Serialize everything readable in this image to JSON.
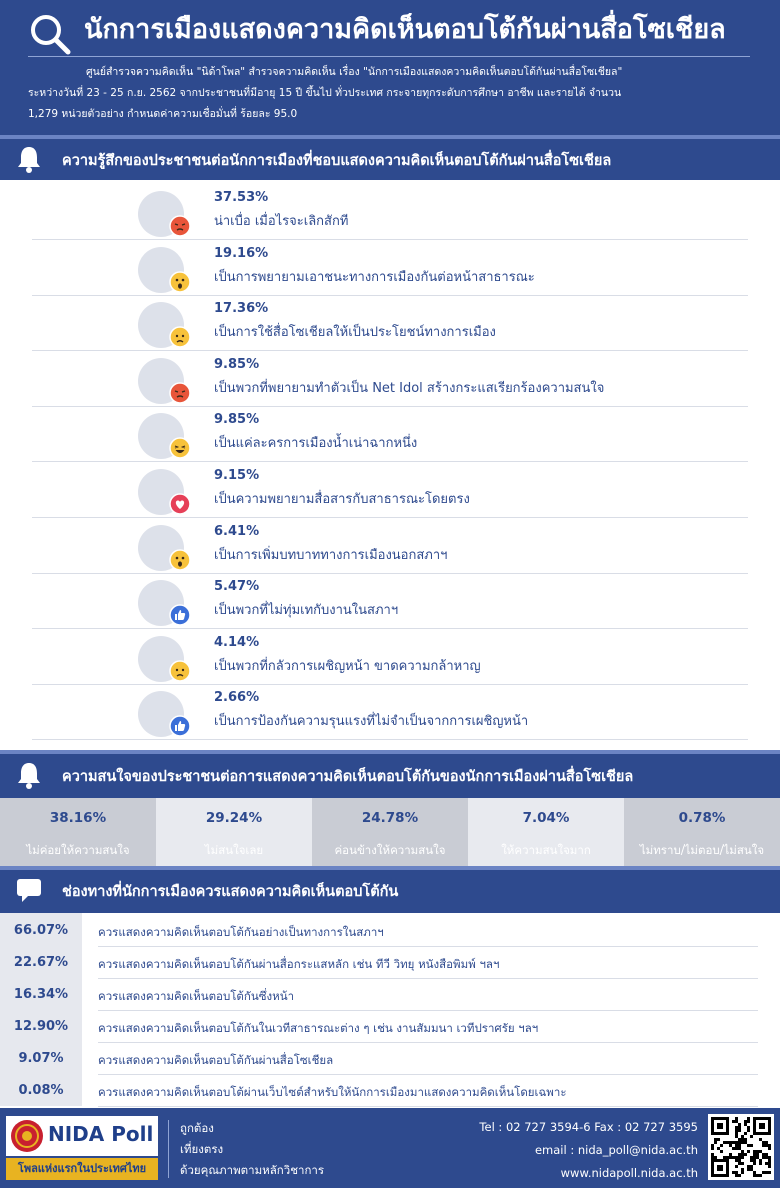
{
  "header": {
    "title": "นักการเมืองแสดงความคิดเห็นตอบโต้กันผ่านสื่อโซเชียล",
    "desc_line1": "ศูนย์สำรวจความคิดเห็น \"นิด้าโพล\" สำรวจความคิดเห็น เรื่อง \"นักการเมืองแสดงความคิดเห็นตอบโต้กันผ่านสื่อโซเชียล\"",
    "desc_line2": "ระหว่างวันที่ 23 - 25 ก.ย. 2562 จากประชาชนที่มีอายุ 15 ปี ขึ้นไป ทั่วประเทศ กระจายทุกระดับการศึกษา อาชีพ และรายได้ จำนวน",
    "desc_line3": "1,279 หน่วยตัวอย่าง กำหนดค่าความเชื่อมั่นที่ ร้อยละ 95.0"
  },
  "colors": {
    "brand": "#2e4a8e",
    "angry": "#e8553a",
    "yellow": "#f7c23b",
    "love": "#e64058",
    "like": "#3b6fd8",
    "s2_dark": "#c9ccd4",
    "s2_light": "#e8eaef"
  },
  "chart_data": [
    {
      "type": "bar",
      "title": "ความรู้สึกของประชาชนต่อนักการเมืองที่ชอบแสดงความคิดเห็นตอบโต้กันผ่านสื่อโซเชียล",
      "items": [
        {
          "pct": "37.53%",
          "label": "น่าเบื่อ เมื่อไรจะเลิกสักที",
          "icon": "angry-emoji-icon"
        },
        {
          "pct": "19.16%",
          "label": "เป็นการพยายามเอาชนะทางการเมืองกันต่อหน้าสาธารณะ",
          "icon": "wow-emoji-icon"
        },
        {
          "pct": "17.36%",
          "label": "เป็นการใช้สื่อโซเชียลให้เป็นประโยชน์ทางการเมือง",
          "icon": "sad-emoji-icon"
        },
        {
          "pct": "9.85%",
          "label": "เป็นพวกที่พยายามทำตัวเป็น Net Idol สร้างกระแสเรียกร้องความสนใจ",
          "icon": "angry-emoji-icon"
        },
        {
          "pct": "9.85%",
          "label": "เป็นแค่ละครการเมืองน้ำเน่าฉากหนึ่ง",
          "icon": "haha-emoji-icon"
        },
        {
          "pct": "9.15%",
          "label": "เป็นความพยายามสื่อสารกับสาธารณะโดยตรง",
          "icon": "love-heart-icon"
        },
        {
          "pct": "6.41%",
          "label": "เป็นการเพิ่มบทบาททางการเมืองนอกสภาฯ",
          "icon": "wow-emoji-icon"
        },
        {
          "pct": "5.47%",
          "label": "เป็นพวกที่ไม่ทุ่มเทกับงานในสภาฯ",
          "icon": "like-thumb-icon"
        },
        {
          "pct": "4.14%",
          "label": "เป็นพวกที่กลัวการเผชิญหน้า ขาดความกล้าหาญ",
          "icon": "sad-emoji-icon"
        },
        {
          "pct": "2.66%",
          "label": "เป็นการป้องกันความรุนแรงที่ไม่จำเป็นจากการเผชิญหน้า",
          "icon": "like-thumb-icon"
        }
      ]
    },
    {
      "type": "table",
      "title": "ความสนใจของประชาชนต่อการแสดงความคิดเห็นตอบโต้กันของนักการเมืองผ่านสื่อโซเชียล",
      "items": [
        {
          "pct": "38.16%",
          "label": "ไม่ค่อยให้ความสนใจ"
        },
        {
          "pct": "29.24%",
          "label": "ไม่สนใจเลย"
        },
        {
          "pct": "24.78%",
          "label": "ค่อนข้างให้ความสนใจ"
        },
        {
          "pct": "7.04%",
          "label": "ให้ความสนใจมาก"
        },
        {
          "pct": "0.78%",
          "label": "ไม่ทราบ/ไม่ตอบ/ไม่สนใจ"
        }
      ]
    },
    {
      "type": "table",
      "title": "ช่องทางที่นักการเมืองควรแสดงความคิดเห็นตอบโต้กัน",
      "items": [
        {
          "pct": "66.07%",
          "label": "ควรแสดงความคิดเห็นตอบโต้กันอย่างเป็นทางการในสภาฯ"
        },
        {
          "pct": "22.67%",
          "label": "ควรแสดงความคิดเห็นตอบโต้กันผ่านสื่อกระแสหลัก เช่น ทีวี วิทยุ หนังสือพิมพ์ ฯลฯ"
        },
        {
          "pct": "16.34%",
          "label": "ควรแสดงความคิดเห็นตอบโต้กันซึ่งหน้า"
        },
        {
          "pct": "12.90%",
          "label": "ควรแสดงความคิดเห็นตอบโต้กันในเวทีสาธารณะต่าง ๆ เช่น งานสัมมนา เวทีปราศรัย ฯลฯ"
        },
        {
          "pct": "9.07%",
          "label": "ควรแสดงความคิดเห็นตอบโต้กันผ่านสื่อโซเชียล"
        },
        {
          "pct": "0.08%",
          "label": "ควรแสดงความคิดเห็นตอบโต้ผ่านเว็บไซต์สำหรับให้นักการเมืองมาแสดงความคิดเห็นโดยเฉพาะ"
        }
      ]
    }
  ],
  "footer": {
    "logo": "NIDA Poll",
    "tagline": "โพลแห่งแรกในประเทศไทย",
    "motto": [
      "ถูกต้อง",
      "เที่ยงตรง",
      "ด้วยคุณภาพตามหลักวิชาการ"
    ],
    "tel": "Tel : 02 727 3594-6 Fax : 02 727 3595",
    "email": "email : nida_poll@nida.ac.th",
    "web": "www.nidapoll.nida.ac.th"
  }
}
